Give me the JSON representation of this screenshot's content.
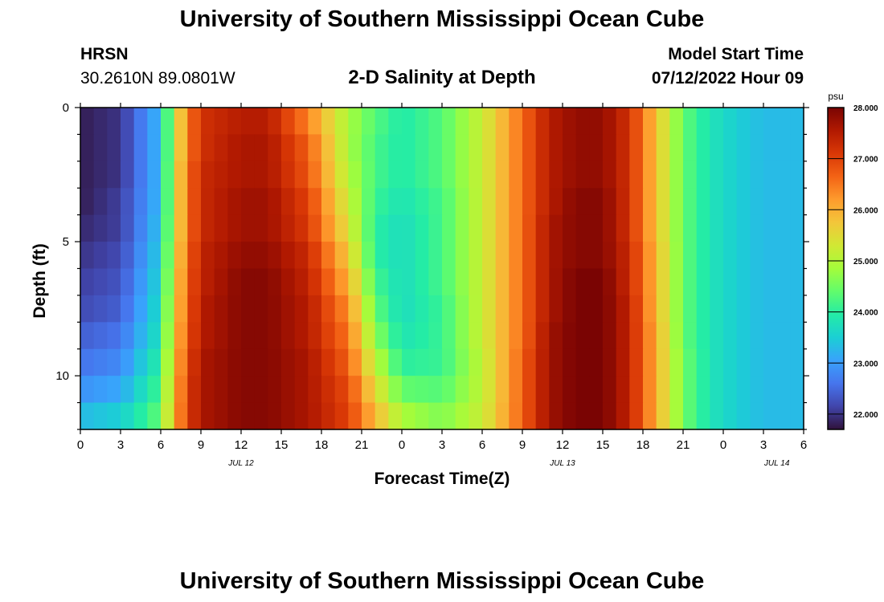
{
  "header": {
    "title": "University of Southern Mississippi Ocean Cube",
    "station": "HRSN",
    "coords": "30.2610N  89.0801W",
    "subtitle": "2-D Salinity at Depth",
    "model_start_label": "Model Start Time",
    "model_start_value": "07/12/2022 Hour 09"
  },
  "footer": {
    "title": "University of Southern Mississippi Ocean Cube"
  },
  "colorbar": {
    "unit": "psu",
    "ticks": [
      "22.000",
      "23.000",
      "24.000",
      "25.000",
      "26.000",
      "27.000",
      "28.000"
    ],
    "range": [
      21.7,
      28.0
    ],
    "colors": [
      "#30123b",
      "#4145ab",
      "#4675ed",
      "#39a2fc",
      "#1bcfd4",
      "#24eca6",
      "#61fc6c",
      "#a4fc3b",
      "#d1e834",
      "#f3c63a",
      "#fe9b2d",
      "#f36315",
      "#d93806",
      "#b11901",
      "#7a0403"
    ]
  },
  "chart_data": {
    "type": "heatmap",
    "title": "2-D Salinity at Depth",
    "xlabel": "Forecast Time(Z)",
    "ylabel": "Depth (ft)",
    "x_ticks": [
      "0",
      "3",
      "6",
      "9",
      "12",
      "15",
      "18",
      "21",
      "0",
      "3",
      "6",
      "9",
      "12",
      "15",
      "18",
      "21",
      "0",
      "3",
      "6"
    ],
    "date_labels": [
      {
        "label": "JUL 12",
        "hour": 12
      },
      {
        "label": "JUL 13",
        "hour": 36
      },
      {
        "label": "JUL 14",
        "hour": 52
      }
    ],
    "xlim": [
      0,
      54
    ],
    "ylim": [
      0,
      12
    ],
    "y_ticks": [
      0,
      5,
      10
    ],
    "y_tick_labels": [
      "0",
      "5",
      "10"
    ],
    "depths": [
      0.5,
      1.5,
      2.5,
      3.5,
      4.5,
      5.5,
      6.5,
      7.5,
      8.5,
      9.5,
      10.5,
      11.5
    ],
    "hours": [
      0,
      3,
      6,
      7,
      8,
      9,
      12,
      14,
      17,
      20,
      22,
      24,
      27,
      30,
      33,
      35,
      37,
      39,
      41,
      43,
      45,
      47,
      49,
      51,
      54
    ],
    "values": [
      [
        21.8,
        22.0,
        23.3,
        25.2,
        26.4,
        27.2,
        27.5,
        27.5,
        26.4,
        24.9,
        24.3,
        23.9,
        24.3,
        25.2,
        26.6,
        27.5,
        27.8,
        27.8,
        27.2,
        25.8,
        24.4,
        23.8,
        23.5,
        23.3,
        23.3
      ],
      [
        21.8,
        22.0,
        23.3,
        25.2,
        26.4,
        27.2,
        27.6,
        27.6,
        26.7,
        24.9,
        24.2,
        23.9,
        24.3,
        25.2,
        26.6,
        27.5,
        27.8,
        27.8,
        27.2,
        25.8,
        24.4,
        23.8,
        23.5,
        23.3,
        23.3
      ],
      [
        21.8,
        22.0,
        23.3,
        25.3,
        26.5,
        27.3,
        27.6,
        27.6,
        26.8,
        25.0,
        24.2,
        23.9,
        24.3,
        25.2,
        26.6,
        27.5,
        27.8,
        27.8,
        27.2,
        25.8,
        24.4,
        23.8,
        23.5,
        23.3,
        23.3
      ],
      [
        21.8,
        22.1,
        23.3,
        25.3,
        26.5,
        27.3,
        27.7,
        27.7,
        27.0,
        25.2,
        24.1,
        23.8,
        24.2,
        25.2,
        26.6,
        27.5,
        27.9,
        27.9,
        27.2,
        25.8,
        24.4,
        23.8,
        23.5,
        23.3,
        23.3
      ],
      [
        21.9,
        22.1,
        23.4,
        25.3,
        26.5,
        27.3,
        27.7,
        27.7,
        27.1,
        25.4,
        24.0,
        23.7,
        24.2,
        25.2,
        26.6,
        27.6,
        27.9,
        27.9,
        27.2,
        25.8,
        24.4,
        23.8,
        23.5,
        23.3,
        23.3
      ],
      [
        22.0,
        22.2,
        23.5,
        25.4,
        26.6,
        27.4,
        27.8,
        27.8,
        27.3,
        25.7,
        24.0,
        23.7,
        24.2,
        25.2,
        26.6,
        27.6,
        27.9,
        27.9,
        27.3,
        25.9,
        24.4,
        23.8,
        23.5,
        23.3,
        23.3
      ],
      [
        22.1,
        22.3,
        23.6,
        25.5,
        26.7,
        27.4,
        27.9,
        27.9,
        27.4,
        26.0,
        24.2,
        23.7,
        24.2,
        25.2,
        26.6,
        27.6,
        28.0,
        28.0,
        27.3,
        25.9,
        24.4,
        23.8,
        23.5,
        23.3,
        23.3
      ],
      [
        22.2,
        22.4,
        23.7,
        25.6,
        26.7,
        27.5,
        27.9,
        27.9,
        27.5,
        26.3,
        24.4,
        23.7,
        24.1,
        25.2,
        26.6,
        27.6,
        28.0,
        28.0,
        27.4,
        25.9,
        24.4,
        23.8,
        23.5,
        23.3,
        23.3
      ],
      [
        22.4,
        22.6,
        23.8,
        25.7,
        26.8,
        27.5,
        27.9,
        27.9,
        27.5,
        26.5,
        24.7,
        23.8,
        24.1,
        25.2,
        26.6,
        27.7,
        28.0,
        28.0,
        27.4,
        26.0,
        24.4,
        23.8,
        23.5,
        23.3,
        23.3
      ],
      [
        22.6,
        22.8,
        24.0,
        25.8,
        26.9,
        27.6,
        27.9,
        27.9,
        27.6,
        26.7,
        25.1,
        24.0,
        24.1,
        25.1,
        26.7,
        27.7,
        28.0,
        28.0,
        27.4,
        26.0,
        24.5,
        23.8,
        23.5,
        23.3,
        23.3
      ],
      [
        22.9,
        23.1,
        24.2,
        25.9,
        27.0,
        27.6,
        27.9,
        27.9,
        27.6,
        26.9,
        25.5,
        24.4,
        24.3,
        25.1,
        26.7,
        27.7,
        28.0,
        28.0,
        27.4,
        26.0,
        24.5,
        23.8,
        23.5,
        23.3,
        23.3
      ],
      [
        23.3,
        23.5,
        24.4,
        26.0,
        27.0,
        27.6,
        27.9,
        27.9,
        27.6,
        27.0,
        25.9,
        24.9,
        24.6,
        25.2,
        26.7,
        27.7,
        28.0,
        28.0,
        27.4,
        26.0,
        24.5,
        23.8,
        23.5,
        23.3,
        23.3
      ]
    ]
  }
}
